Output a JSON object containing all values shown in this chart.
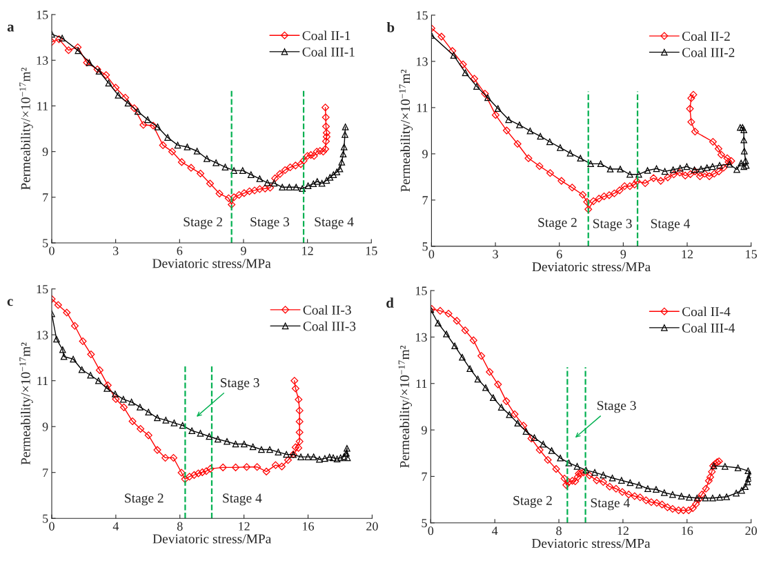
{
  "chart_data": [
    {
      "type": "line",
      "title": "a",
      "xlabel": "Deviatoric stress/MPa",
      "ylabel": "Permeability/×10$^{−17}$m²",
      "xlim": [
        0,
        15
      ],
      "xticks": [
        0,
        3,
        6,
        9,
        12,
        15
      ],
      "ylim": [
        5,
        15
      ],
      "yticks": [
        5,
        7,
        9,
        11,
        13,
        15
      ],
      "legend": "top right",
      "line_style": "solid",
      "grid": false,
      "series": [
        {
          "name": "Coal II-1",
          "color": "#ff0000",
          "marker": "diamond",
          "x": [
            0,
            0.34,
            0.79,
            1.22,
            1.65,
            2.14,
            2.55,
            3.0,
            3.45,
            3.87,
            4.3,
            4.76,
            5.22,
            5.65,
            6.1,
            6.54,
            6.98,
            7.43,
            7.87,
            8.3,
            8.44,
            8.55,
            8.79,
            9.03,
            9.28,
            9.52,
            9.76,
            10.01,
            10.25,
            10.48,
            10.71,
            10.95,
            11.19,
            11.44,
            11.69,
            11.82,
            12.0,
            12.16,
            12.31,
            12.44,
            12.59,
            12.74,
            12.84,
            12.87,
            12.9,
            12.9,
            12.87,
            12.86,
            12.84
          ],
          "values": [
            13.8,
            13.92,
            13.44,
            13.57,
            12.9,
            12.6,
            12.35,
            11.8,
            11.36,
            10.9,
            10.17,
            10.14,
            9.28,
            9.0,
            8.54,
            8.29,
            8.04,
            7.6,
            7.16,
            6.96,
            6.68,
            7.0,
            7.1,
            7.18,
            7.26,
            7.3,
            7.36,
            7.38,
            7.42,
            7.83,
            8.02,
            8.19,
            8.31,
            8.39,
            8.45,
            8.6,
            8.81,
            8.85,
            8.81,
            9.0,
            9.03,
            9.0,
            9.11,
            9.45,
            9.65,
            9.82,
            10.1,
            10.5,
            10.93
          ]
        },
        {
          "name": "Coal III-1",
          "color": "#000000",
          "marker": "triangle",
          "x": [
            0,
            0.49,
            1.24,
            1.76,
            2.22,
            2.67,
            3.12,
            3.58,
            4.04,
            4.5,
            4.97,
            5.44,
            5.91,
            6.36,
            6.82,
            7.28,
            7.71,
            8.14,
            8.55,
            8.96,
            9.35,
            9.76,
            10.12,
            10.44,
            10.82,
            11.15,
            11.47,
            11.76,
            12.03,
            12.28,
            12.46,
            12.68,
            12.9,
            13.06,
            13.22,
            13.38,
            13.52,
            13.61,
            13.68,
            13.72,
            13.76,
            13.78
          ],
          "values": [
            14.14,
            13.97,
            13.42,
            12.9,
            12.52,
            12.0,
            11.47,
            11.12,
            10.76,
            10.4,
            10.08,
            9.62,
            9.28,
            9.2,
            9.02,
            8.69,
            8.51,
            8.32,
            8.17,
            8.17,
            7.99,
            7.81,
            7.63,
            7.62,
            7.44,
            7.44,
            7.44,
            7.38,
            7.5,
            7.59,
            7.69,
            7.61,
            7.74,
            7.87,
            7.99,
            8.11,
            8.24,
            8.54,
            8.89,
            9.2,
            9.75,
            10.08
          ]
        }
      ],
      "ref_lines": [
        {
          "axis": "x",
          "value": 8.44,
          "color": "#00b050",
          "line_style": "dashed"
        },
        {
          "axis": "x",
          "value": 11.82,
          "color": "#00b050",
          "line_style": "dashed"
        }
      ],
      "annotations": [
        "Stage 2",
        "Stage 3",
        "Stage 4"
      ]
    },
    {
      "type": "line",
      "title": "b",
      "xlabel": "Deviatoric stress/MPa",
      "ylabel": "Permeability/×10$^{−17}$m²",
      "xlim": [
        0,
        15
      ],
      "xticks": [
        0,
        3,
        6,
        9,
        12,
        15
      ],
      "ylim": [
        5,
        15
      ],
      "yticks": [
        5,
        7,
        9,
        11,
        13,
        15
      ],
      "legend": "top right",
      "line_style": "solid",
      "grid": false,
      "series": [
        {
          "name": "Coal II-2",
          "color": "#ff0000",
          "marker": "diamond",
          "x": [
            0,
            0.47,
            0.98,
            1.48,
            2.01,
            2.51,
            3.01,
            3.53,
            4.04,
            4.55,
            5.07,
            5.57,
            6.1,
            6.6,
            7.1,
            7.3,
            7.36,
            7.6,
            7.86,
            8.1,
            8.34,
            8.58,
            8.83,
            9.06,
            9.31,
            9.53,
            9.64,
            10.03,
            10.42,
            10.76,
            11.09,
            11.37,
            11.65,
            11.91,
            12.15,
            12.37,
            12.6,
            12.82,
            13.04,
            13.27,
            13.49,
            13.71,
            13.94,
            14.07,
            13.88,
            13.6,
            13.47,
            13.21,
            12.37,
            12.19,
            12.13,
            12.19,
            12.29
          ],
          "values": [
            14.43,
            14.07,
            13.45,
            12.87,
            12.25,
            11.6,
            10.68,
            10.01,
            9.43,
            8.81,
            8.47,
            8.17,
            7.83,
            7.54,
            7.23,
            6.92,
            6.6,
            6.95,
            7.06,
            7.16,
            7.21,
            7.29,
            7.42,
            7.6,
            7.6,
            7.67,
            7.81,
            7.73,
            7.95,
            7.83,
            7.98,
            8.11,
            8.19,
            8.06,
            8.12,
            8.24,
            8.03,
            8.14,
            8.03,
            8.14,
            8.24,
            8.4,
            8.65,
            8.69,
            8.81,
            8.96,
            9.22,
            9.52,
            9.96,
            10.38,
            10.95,
            11.41,
            11.56
          ]
        },
        {
          "name": "Coal III-2",
          "color": "#000000",
          "marker": "triangle",
          "x": [
            0,
            1.04,
            1.59,
            2.12,
            2.64,
            3.12,
            3.62,
            4.13,
            4.63,
            5.11,
            5.55,
            6.04,
            6.51,
            6.99,
            7.47,
            7.94,
            8.39,
            8.86,
            9.31,
            9.73,
            10.14,
            10.56,
            10.95,
            11.34,
            11.67,
            11.98,
            12.34,
            12.65,
            12.93,
            13.19,
            13.52,
            13.99,
            14.33,
            14.53,
            14.66,
            14.77,
            14.74,
            14.68,
            14.66,
            14.66,
            14.6,
            14.49
          ],
          "values": [
            14.13,
            13.26,
            12.51,
            11.92,
            11.43,
            10.96,
            10.48,
            10.25,
            9.99,
            9.76,
            9.52,
            9.27,
            9.03,
            8.81,
            8.57,
            8.57,
            8.34,
            8.34,
            8.11,
            8.11,
            8.28,
            8.36,
            8.24,
            8.31,
            8.38,
            8.45,
            8.31,
            8.34,
            8.4,
            8.45,
            8.5,
            8.55,
            8.32,
            8.6,
            8.45,
            8.5,
            8.7,
            9.12,
            9.6,
            10.04,
            10.14,
            10.14
          ]
        }
      ],
      "ref_lines": [
        {
          "axis": "x",
          "value": 7.36,
          "color": "#00b050",
          "line_style": "dashed"
        },
        {
          "axis": "x",
          "value": 9.67,
          "color": "#00b050",
          "line_style": "dashed"
        }
      ],
      "annotations": [
        "Stage 2",
        "Stage 3",
        "Stage 4"
      ]
    },
    {
      "type": "line",
      "title": "c",
      "xlabel": "Deviatoric stress/MPa",
      "ylabel": "Permeability/×10$^{−17}$m²",
      "xlim": [
        0,
        20
      ],
      "xticks": [
        0,
        4,
        8,
        12,
        16,
        20
      ],
      "ylim": [
        5,
        15
      ],
      "yticks": [
        5,
        7,
        9,
        11,
        13,
        15
      ],
      "legend": "top right",
      "line_style": "solid",
      "grid": false,
      "series": [
        {
          "name": "Coal II-3",
          "color": "#ff0000",
          "marker": "diamond",
          "x": [
            0,
            0.4,
            0.94,
            1.44,
            1.94,
            2.45,
            2.99,
            3.5,
            4.0,
            4.5,
            5.04,
            5.54,
            6.04,
            6.59,
            7.09,
            7.6,
            8.1,
            8.32,
            8.6,
            8.89,
            9.15,
            9.4,
            9.65,
            9.9,
            10.69,
            11.48,
            12.17,
            12.82,
            13.4,
            13.97,
            14.36,
            14.75,
            15.08,
            15.4,
            15.22,
            15.47,
            15.47,
            15.47,
            15.47,
            15.41,
            15.22,
            15.15
          ],
          "values": [
            14.56,
            14.3,
            13.97,
            13.39,
            12.72,
            12.15,
            11.46,
            10.8,
            10.2,
            9.84,
            9.23,
            8.9,
            8.62,
            7.98,
            7.64,
            7.64,
            6.99,
            6.71,
            6.82,
            6.89,
            6.96,
            7.01,
            7.06,
            7.16,
            7.22,
            7.22,
            7.24,
            7.24,
            7.04,
            7.32,
            7.26,
            7.54,
            7.79,
            8.07,
            8.1,
            8.35,
            8.75,
            9.22,
            9.7,
            10.18,
            10.66,
            11.0
          ]
        },
        {
          "name": "Coal III-3",
          "color": "#000000",
          "marker": "triangle",
          "x": [
            0,
            0.3,
            0.68,
            0.76,
            1.34,
            1.88,
            2.42,
            2.92,
            3.45,
            3.96,
            4.47,
            4.98,
            5.51,
            6.04,
            6.59,
            7.12,
            7.64,
            8.17,
            8.75,
            9.28,
            9.83,
            10.37,
            10.94,
            11.48,
            12.01,
            12.56,
            13.09,
            13.61,
            14.14,
            14.65,
            15.08,
            15.55,
            15.99,
            16.35,
            16.71,
            17.05,
            17.34,
            17.57,
            17.81,
            18.03,
            18.24,
            18.39,
            18.43,
            18.46
          ],
          "values": [
            13.92,
            12.81,
            12.35,
            12.05,
            11.94,
            11.48,
            11.24,
            11.0,
            10.66,
            10.42,
            10.19,
            10.07,
            9.85,
            9.63,
            9.38,
            9.28,
            9.16,
            9.05,
            8.82,
            8.71,
            8.57,
            8.45,
            8.35,
            8.24,
            8.24,
            8.12,
            8.0,
            8.0,
            7.89,
            7.79,
            7.78,
            7.68,
            7.68,
            7.68,
            7.57,
            7.61,
            7.67,
            7.64,
            7.59,
            7.64,
            7.69,
            7.84,
            8.05,
            7.64
          ]
        }
      ],
      "ref_lines": [
        {
          "axis": "x",
          "value": 8.33,
          "color": "#00b050",
          "line_style": "dashed"
        },
        {
          "axis": "x",
          "value": 9.99,
          "color": "#00b050",
          "line_style": "dashed"
        }
      ],
      "annotations": [
        "Stage 3",
        "Stage 2",
        "Stage 4"
      ]
    },
    {
      "type": "line",
      "title": "d",
      "xlabel": "Deviatoric stress/MPa",
      "ylabel": "Permeability/×10$^{−17}$m²",
      "xlim": [
        0,
        20
      ],
      "xticks": [
        0,
        4,
        8,
        12,
        16,
        20
      ],
      "ylim": [
        5,
        15
      ],
      "yticks": [
        5,
        7,
        9,
        11,
        13,
        15
      ],
      "legend": "top right",
      "line_style": "solid",
      "grid": false,
      "series": [
        {
          "name": "Coal II-4",
          "color": "#ff0000",
          "marker": "diamond",
          "x": [
            0.07,
            0.59,
            1.11,
            1.63,
            2.15,
            2.67,
            3.16,
            3.68,
            4.2,
            4.72,
            5.24,
            5.79,
            6.28,
            6.8,
            7.31,
            7.83,
            8.35,
            8.46,
            8.62,
            8.84,
            9.02,
            9.17,
            9.24,
            9.39,
            9.54,
            9.91,
            10.36,
            10.77,
            11.17,
            11.57,
            11.96,
            12.36,
            12.73,
            13.07,
            13.44,
            13.77,
            14.11,
            14.44,
            14.78,
            15.1,
            15.47,
            15.77,
            16.1,
            16.36,
            16.56,
            16.74,
            16.93,
            17.18,
            17.36,
            17.45,
            17.55,
            17.63,
            17.74,
            17.88,
            18.0
          ],
          "values": [
            14.21,
            14.13,
            14.01,
            13.7,
            13.29,
            12.86,
            12.19,
            11.5,
            10.96,
            10.24,
            9.68,
            9.19,
            8.63,
            8.14,
            7.71,
            7.32,
            6.91,
            6.63,
            6.76,
            6.81,
            6.79,
            6.97,
            7.12,
            7.14,
            7.17,
            7.04,
            6.83,
            6.76,
            6.56,
            6.47,
            6.33,
            6.22,
            6.15,
            6.1,
            5.97,
            5.89,
            5.86,
            5.79,
            5.67,
            5.6,
            5.54,
            5.54,
            5.54,
            5.63,
            5.81,
            6.02,
            6.22,
            6.47,
            6.81,
            6.97,
            7.2,
            7.46,
            7.53,
            7.61,
            7.65
          ]
        },
        {
          "name": "Coal III-4",
          "color": "#000000",
          "marker": "triangle",
          "x": [
            0,
            0.46,
            0.98,
            1.5,
            1.97,
            2.45,
            2.94,
            3.43,
            3.9,
            4.41,
            4.91,
            5.43,
            5.95,
            6.47,
            7.02,
            7.55,
            8.09,
            8.62,
            9.14,
            9.69,
            10.24,
            10.77,
            11.34,
            11.91,
            12.45,
            13.0,
            13.55,
            14.07,
            14.58,
            15.1,
            15.65,
            16.14,
            16.63,
            17.15,
            17.6,
            18.04,
            18.47,
            19.07,
            19.41,
            19.63,
            19.78,
            19.84,
            19.93,
            19.81,
            19.18,
            18.37,
            17.67
          ],
          "values": [
            14.18,
            13.6,
            13.13,
            12.62,
            12.13,
            11.64,
            11.19,
            10.82,
            10.39,
            9.98,
            9.66,
            9.29,
            8.94,
            8.67,
            8.39,
            8.11,
            7.79,
            7.58,
            7.43,
            7.27,
            7.17,
            7.06,
            6.93,
            6.83,
            6.73,
            6.63,
            6.47,
            6.44,
            6.3,
            6.22,
            6.15,
            6.1,
            6.07,
            6.07,
            6.07,
            6.1,
            6.12,
            6.28,
            6.4,
            6.56,
            6.76,
            6.91,
            7.07,
            7.24,
            7.37,
            7.43,
            7.45
          ]
        }
      ],
      "ref_lines": [
        {
          "axis": "x",
          "value": 8.53,
          "color": "#00b050",
          "line_style": "dashed"
        },
        {
          "axis": "x",
          "value": 9.66,
          "color": "#00b050",
          "line_style": "dashed"
        }
      ],
      "annotations": [
        "Stage 3",
        "Stage 2",
        "Stage 4"
      ]
    }
  ]
}
